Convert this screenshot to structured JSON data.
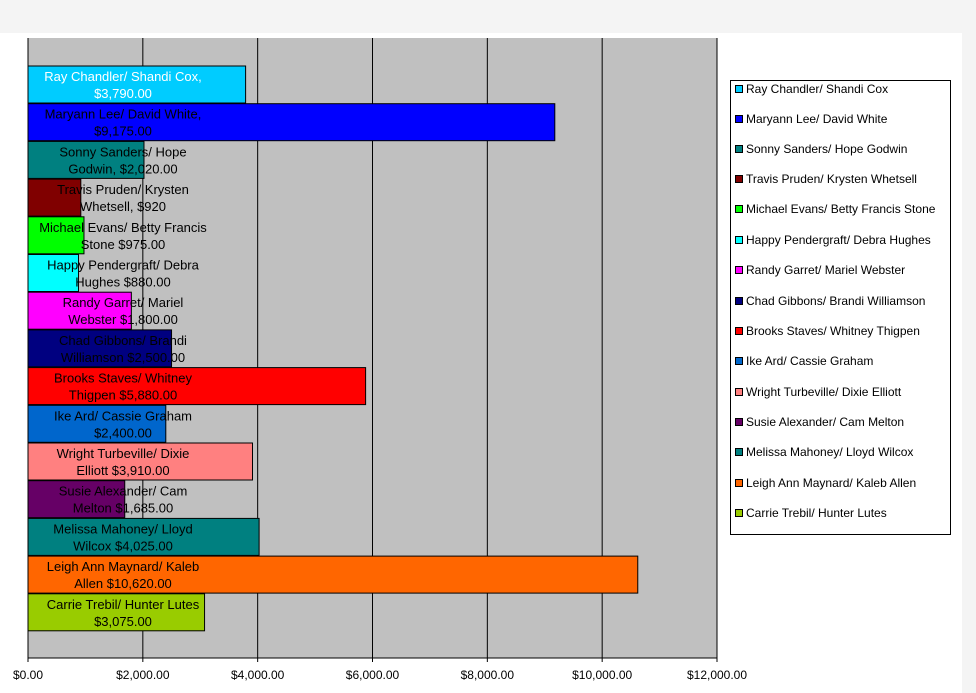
{
  "chart_data": {
    "type": "bar",
    "orientation": "horizontal",
    "title": "",
    "xlabel": "",
    "ylabel": "",
    "xlim": [
      0,
      12000
    ],
    "x_ticks": [
      "$0.00",
      "$2,000.00",
      "$4,000.00",
      "$6,000.00",
      "$8,000.00",
      "$10,000.00",
      "$12,000.00"
    ],
    "grid": true,
    "plot_background": "#c0c0c0",
    "legend_position": "right",
    "bars": [
      {
        "name": "Ray Chandler/ Shandi Cox",
        "value": 3790,
        "label_line1": "Ray Chandler/ Shandi Cox,",
        "label_line2": "$3,790.00",
        "color": "#00ccff",
        "text_color": "#ffffff"
      },
      {
        "name": "Maryann Lee/ David White",
        "value": 9175,
        "label_line1": "Maryann Lee/ David White,",
        "label_line2": "$9,175.00",
        "color": "#0000ff",
        "text_color": "#000000"
      },
      {
        "name": "Sonny Sanders/ Hope Godwin",
        "value": 2020,
        "label_line1": "Sonny Sanders/ Hope",
        "label_line2": "Godwin, $2,020.00",
        "color": "#008080",
        "text_color": "#000000"
      },
      {
        "name": "Travis Pruden/ Krysten Whetsell",
        "value": 920,
        "label_line1": "Travis Pruden/ Krysten",
        "label_line2": "Whetsell, $920",
        "color": "#800000",
        "text_color": "#000000"
      },
      {
        "name": "Michael Evans/ Betty Francis Stone",
        "value": 975,
        "label_line1": "Michael Evans/ Betty Francis",
        "label_line2": "Stone $975.00",
        "color": "#00ff00",
        "text_color": "#000000"
      },
      {
        "name": "Happy Pendergraft/ Debra Hughes",
        "value": 880,
        "label_line1": "Happy Pendergraft/ Debra",
        "label_line2": "Hughes $880.00",
        "color": "#00ffff",
        "text_color": "#000000"
      },
      {
        "name": "Randy Garret/ Mariel Webster",
        "value": 1800,
        "label_line1": "Randy Garret/ Mariel",
        "label_line2": "Webster $1,800.00",
        "color": "#ff00ff",
        "text_color": "#000000"
      },
      {
        "name": "Chad Gibbons/ Brandi Williamson",
        "value": 2500,
        "label_line1": "Chad Gibbons/ Brandi",
        "label_line2": "Williamson $2,500.00",
        "color": "#000080",
        "text_color": "#000000"
      },
      {
        "name": "Brooks Staves/ Whitney Thigpen",
        "value": 5880,
        "label_line1": "Brooks Staves/ Whitney",
        "label_line2": "Thigpen $5,880.00",
        "color": "#ff0000",
        "text_color": "#000000"
      },
      {
        "name": "Ike Ard/ Cassie Graham",
        "value": 2400,
        "label_line1": "Ike Ard/ Cassie Graham",
        "label_line2": "$2,400.00",
        "color": "#0066cc",
        "text_color": "#000000"
      },
      {
        "name": "Wright Turbeville/ Dixie Elliott",
        "value": 3910,
        "label_line1": "Wright Turbeville/ Dixie",
        "label_line2": "Elliott $3,910.00",
        "color": "#ff8080",
        "text_color": "#000000"
      },
      {
        "name": "Susie Alexander/ Cam Melton",
        "value": 1685,
        "label_line1": "Susie Alexander/ Cam",
        "label_line2": "Melton $1,685.00",
        "color": "#660066",
        "text_color": "#000000"
      },
      {
        "name": "Melissa Mahoney/ Lloyd Wilcox",
        "value": 4025,
        "label_line1": "Melissa Mahoney/ Lloyd",
        "label_line2": "Wilcox $4,025.00",
        "color": "#008080",
        "text_color": "#000000"
      },
      {
        "name": "Leigh Ann Maynard/ Kaleb Allen",
        "value": 10620,
        "label_line1": "Leigh Ann Maynard/ Kaleb",
        "label_line2": "Allen $10,620.00",
        "color": "#ff6600",
        "text_color": "#000000"
      },
      {
        "name": "Carrie Trebil/ Hunter Lutes",
        "value": 3075,
        "label_line1": "Carrie Trebil/ Hunter Lutes",
        "label_line2": "$3,075.00",
        "color": "#99cc00",
        "text_color": "#000000"
      }
    ],
    "legend": [
      {
        "label": "Ray Chandler/ Shandi Cox",
        "color": "#00ccff"
      },
      {
        "label": "Maryann Lee/ David White",
        "color": "#0000ff"
      },
      {
        "label": "Sonny Sanders/ Hope Godwin",
        "color": "#008080"
      },
      {
        "label": "Travis Pruden/ Krysten Whetsell",
        "color": "#800000"
      },
      {
        "label": "Michael Evans/ Betty Francis Stone",
        "color": "#00ff00"
      },
      {
        "label": "Happy Pendergraft/ Debra Hughes",
        "color": "#00ffff"
      },
      {
        "label": "Randy Garret/ Mariel Webster",
        "color": "#ff00ff"
      },
      {
        "label": "Chad Gibbons/ Brandi Williamson",
        "color": "#000080"
      },
      {
        "label": "Brooks Staves/ Whitney Thigpen",
        "color": "#ff0000"
      },
      {
        "label": "Ike Ard/ Cassie Graham",
        "color": "#0066cc"
      },
      {
        "label": "Wright Turbeville/ Dixie Elliott",
        "color": "#ff8080"
      },
      {
        "label": "Susie Alexander/ Cam Melton",
        "color": "#660066"
      },
      {
        "label": "Melissa Mahoney/ Lloyd Wilcox",
        "color": "#008080"
      },
      {
        "label": "Leigh Ann Maynard/ Kaleb Allen",
        "color": "#ff6600"
      },
      {
        "label": "Carrie Trebil/ Hunter Lutes",
        "color": "#99cc00"
      }
    ]
  }
}
